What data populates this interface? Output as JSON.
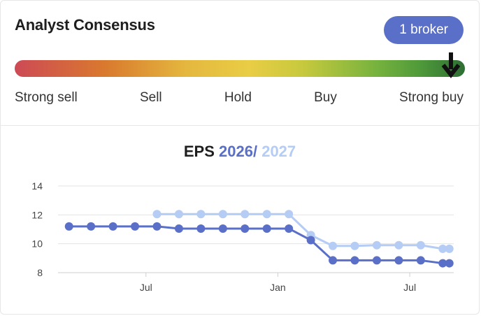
{
  "consensus": {
    "title": "Analyst Consensus",
    "broker_badge": "1 broker",
    "scale_labels": [
      "Strong sell",
      "Sell",
      "Hold",
      "Buy",
      "Strong buy"
    ],
    "current_rating": "Strong buy",
    "marker_icon": "arrow-down-icon"
  },
  "eps": {
    "label": "EPS",
    "year1": "2026",
    "separator": "/",
    "year2": "2027"
  },
  "colors": {
    "series_2026": "#5a6fc7",
    "series_2027": "#b5ccf5",
    "badge": "#5a6fc7"
  },
  "chart_data": {
    "type": "line",
    "x_ticks": [
      "Jul",
      "Jan",
      "Jul"
    ],
    "x_tick_index": [
      3.5,
      9.5,
      15.5
    ],
    "y_ticks": [
      8,
      10,
      12,
      14
    ],
    "ylim": [
      8,
      14
    ],
    "xlim": [
      -0.5,
      17.5
    ],
    "grid": true,
    "series": [
      {
        "name": "2026",
        "color": "#5a6fc7",
        "x": [
          0,
          1,
          2,
          3,
          4,
          5,
          6,
          7,
          8,
          9,
          10,
          11,
          12,
          13,
          14,
          15,
          16,
          17,
          17.3
        ],
        "values": [
          11.2,
          11.2,
          11.2,
          11.2,
          11.2,
          11.05,
          11.05,
          11.05,
          11.05,
          11.05,
          11.05,
          10.25,
          8.85,
          8.85,
          8.85,
          8.85,
          8.85,
          8.65,
          8.65
        ]
      },
      {
        "name": "2027",
        "color": "#b5ccf5",
        "x": [
          4,
          5,
          6,
          7,
          8,
          9,
          10,
          11,
          12,
          13,
          14,
          15,
          16,
          17,
          17.3
        ],
        "values": [
          12.05,
          12.05,
          12.05,
          12.05,
          12.05,
          12.05,
          12.05,
          10.6,
          9.85,
          9.85,
          9.9,
          9.9,
          9.9,
          9.65,
          9.65
        ]
      }
    ]
  }
}
